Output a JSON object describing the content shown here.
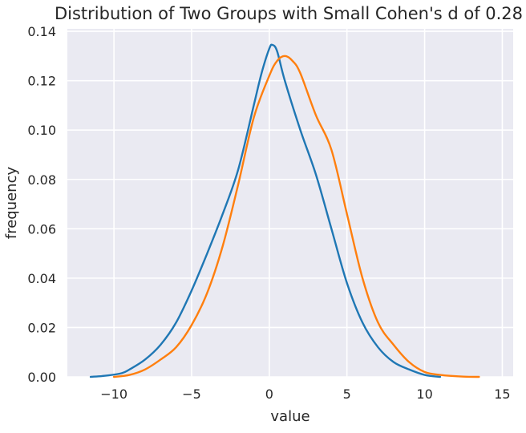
{
  "chart_data": {
    "type": "line",
    "title": "Distribution of Two Groups with Small Cohen's d of 0.28",
    "xlabel": "value",
    "ylabel": "frequency",
    "xlim": [
      -13,
      15.7
    ],
    "ylim": [
      0,
      0.141
    ],
    "xticks": [
      -10,
      -5,
      0,
      5,
      10,
      15
    ],
    "xtick_labels": [
      "−10",
      "−5",
      "0",
      "5",
      "10",
      "15"
    ],
    "yticks": [
      0.0,
      0.02,
      0.04,
      0.06,
      0.08,
      0.1,
      0.12,
      0.14
    ],
    "ytick_labels": [
      "0.00",
      "0.02",
      "0.04",
      "0.06",
      "0.08",
      "0.10",
      "0.12",
      "0.14"
    ],
    "grid": true,
    "legend": "none",
    "background": "#eaeaf2",
    "series": [
      {
        "color": "#1f77b4",
        "points": [
          [
            -11.5,
            0.0
          ],
          [
            -10.5,
            0.0005
          ],
          [
            -9.5,
            0.0015
          ],
          [
            -9.0,
            0.003
          ],
          [
            -8.0,
            0.007
          ],
          [
            -7.0,
            0.013
          ],
          [
            -6.0,
            0.022
          ],
          [
            -5.0,
            0.035
          ],
          [
            -4.0,
            0.05
          ],
          [
            -3.0,
            0.066
          ],
          [
            -2.0,
            0.084
          ],
          [
            -1.0,
            0.11
          ],
          [
            -0.5,
            0.123
          ],
          [
            0.0,
            0.133
          ],
          [
            0.2,
            0.1345
          ],
          [
            0.5,
            0.132
          ],
          [
            1.0,
            0.12
          ],
          [
            2.0,
            0.1
          ],
          [
            3.0,
            0.082
          ],
          [
            4.0,
            0.06
          ],
          [
            5.0,
            0.038
          ],
          [
            6.0,
            0.022
          ],
          [
            7.0,
            0.012
          ],
          [
            8.0,
            0.006
          ],
          [
            9.0,
            0.003
          ],
          [
            10.0,
            0.0008
          ],
          [
            11.0,
            0.0
          ]
        ]
      },
      {
        "color": "#ff7f0e",
        "points": [
          [
            -10.0,
            0.0
          ],
          [
            -9.0,
            0.0008
          ],
          [
            -8.0,
            0.003
          ],
          [
            -7.0,
            0.007
          ],
          [
            -6.0,
            0.012
          ],
          [
            -5.0,
            0.021
          ],
          [
            -4.0,
            0.034
          ],
          [
            -3.0,
            0.053
          ],
          [
            -2.0,
            0.078
          ],
          [
            -1.0,
            0.105
          ],
          [
            0.0,
            0.122
          ],
          [
            0.5,
            0.128
          ],
          [
            1.0,
            0.13
          ],
          [
            1.5,
            0.128
          ],
          [
            2.0,
            0.123
          ],
          [
            3.0,
            0.106
          ],
          [
            4.0,
            0.092
          ],
          [
            5.0,
            0.066
          ],
          [
            6.0,
            0.04
          ],
          [
            7.0,
            0.022
          ],
          [
            8.0,
            0.013
          ],
          [
            9.0,
            0.006
          ],
          [
            10.0,
            0.002
          ],
          [
            11.0,
            0.0008
          ],
          [
            12.5,
            0.0001
          ],
          [
            13.5,
            0.0
          ]
        ]
      }
    ]
  }
}
